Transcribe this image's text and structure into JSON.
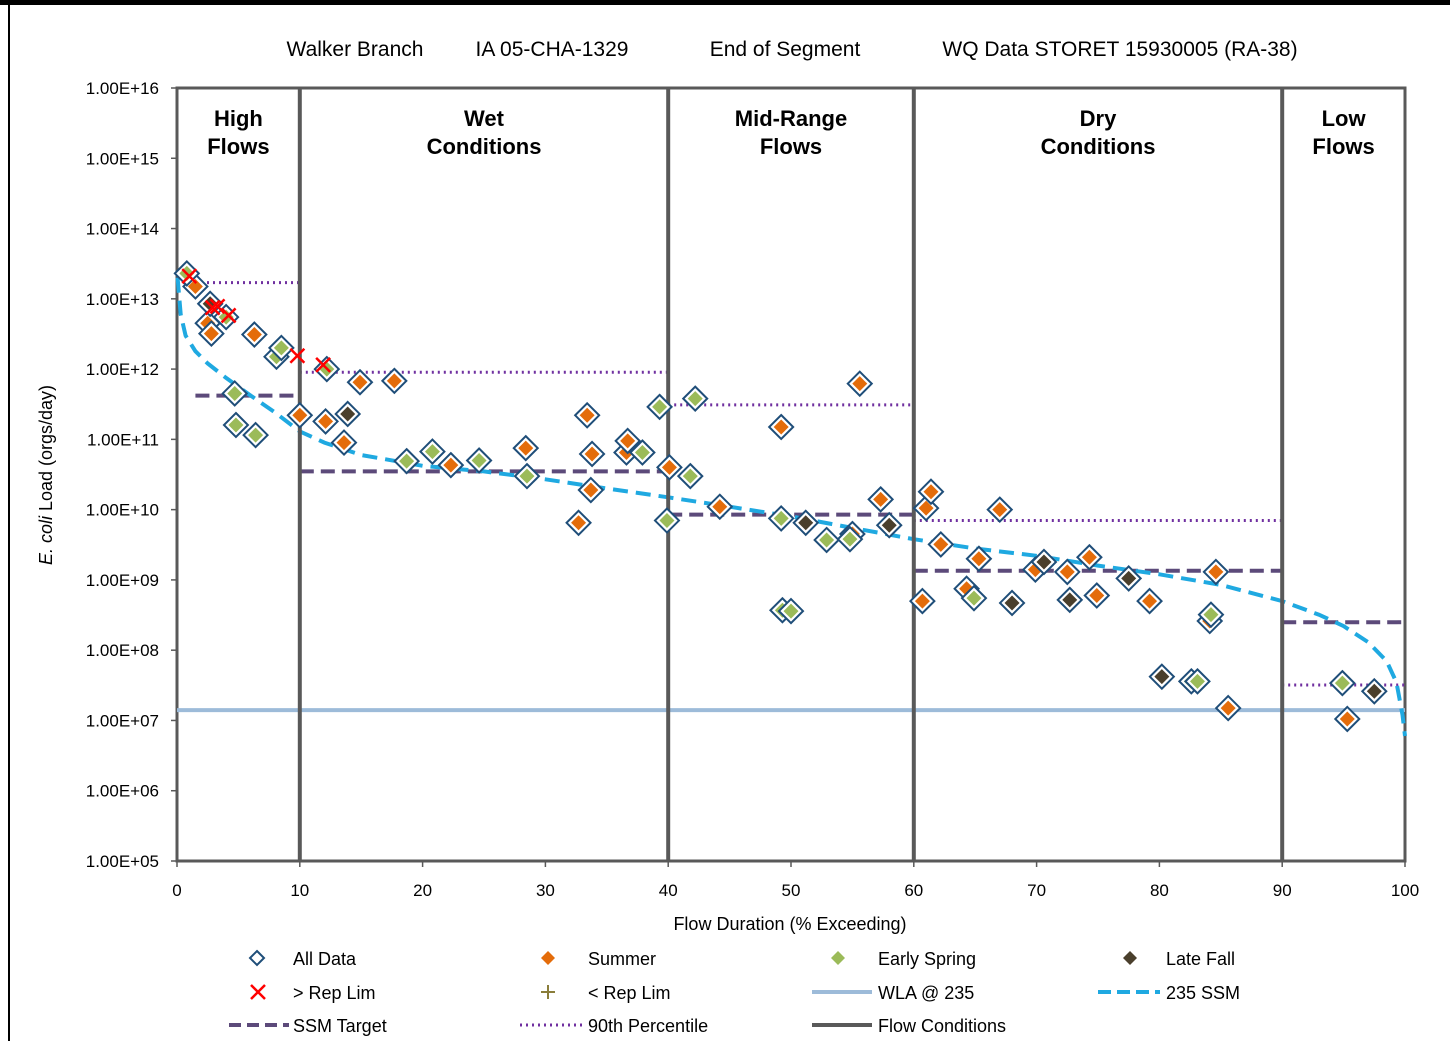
{
  "chart_data": {
    "type": "scatter",
    "title_parts": [
      "Walker Branch",
      "IA 05-CHA-1329",
      "End of Segment",
      "WQ Data STORET 15930005 (RA-38)"
    ],
    "xlabel": "Flow Duration (% Exceeding)",
    "ylabel_italic": "E. coli",
    "ylabel_rest": " Load (orgs/day)",
    "xlim": [
      0,
      100
    ],
    "ylim_log10": [
      5,
      16
    ],
    "y_scale": "log",
    "x_ticks": [
      "0",
      "10",
      "20",
      "30",
      "40",
      "50",
      "60",
      "70",
      "80",
      "90",
      "100"
    ],
    "y_ticks": [
      "1.00E+05",
      "1.00E+06",
      "1.00E+07",
      "1.00E+08",
      "1.00E+09",
      "1.00E+10",
      "1.00E+11",
      "1.00E+12",
      "1.00E+13",
      "1.00E+14",
      "1.00E+15",
      "1.00E+16"
    ],
    "flow_zones": [
      {
        "lines": [
          "High",
          "Flows"
        ],
        "from": 0,
        "to": 10
      },
      {
        "lines": [
          "Wet",
          "Conditions"
        ],
        "from": 10,
        "to": 40
      },
      {
        "lines": [
          "Mid-Range",
          "Flows"
        ],
        "from": 40,
        "to": 60
      },
      {
        "lines": [
          "Dry",
          "Conditions"
        ],
        "from": 60,
        "to": 90
      },
      {
        "lines": [
          "Low",
          "Flows"
        ],
        "from": 90,
        "to": 100
      }
    ],
    "flow_condition_boundaries": [
      10,
      40,
      60,
      90
    ],
    "wla_235": 14000000.0,
    "ssm_target": [
      {
        "x0": 1.5,
        "x1": 10,
        "y": 420000000000.0
      },
      {
        "x0": 10,
        "x1": 40,
        "y": 35000000000.0
      },
      {
        "x0": 40,
        "x1": 60,
        "y": 8500000000.0
      },
      {
        "x0": 60,
        "x1": 90,
        "y": 1350000000.0
      },
      {
        "x0": 90,
        "x1": 100,
        "y": 250000000.0
      }
    ],
    "percentile_90": [
      {
        "x0": 0,
        "x1": 10,
        "y": 17000000000000.0
      },
      {
        "x0": 10,
        "x1": 40,
        "y": 900000000000.0
      },
      {
        "x0": 40,
        "x1": 60,
        "y": 310000000000.0
      },
      {
        "x0": 60,
        "x1": 90,
        "y": 7000000000.0
      },
      {
        "x0": 90,
        "x1": 100,
        "y": 32000000.0
      }
    ],
    "ssm_curve": [
      [
        0.05,
        20000000000000.0
      ],
      [
        0.3,
        6000000000000.0
      ],
      [
        0.7,
        3000000000000.0
      ],
      [
        1.5,
        1800000000000.0
      ],
      [
        2.5,
        1200000000000.0
      ],
      [
        4,
        750000000000.0
      ],
      [
        6,
        420000000000.0
      ],
      [
        8,
        240000000000.0
      ],
      [
        10,
        130000000000.0
      ],
      [
        12,
        90000000000.0
      ],
      [
        15,
        60000000000.0
      ],
      [
        20,
        42000000000.0
      ],
      [
        25,
        35000000000.0
      ],
      [
        30,
        27000000000.0
      ],
      [
        35,
        20000000000.0
      ],
      [
        40,
        15000000000.0
      ],
      [
        45,
        11000000000.0
      ],
      [
        50,
        8000000000.0
      ],
      [
        55,
        5500000000.0
      ],
      [
        60,
        3800000000.0
      ],
      [
        65,
        2800000000.0
      ],
      [
        70,
        2200000000.0
      ],
      [
        75,
        1600000000.0
      ],
      [
        80,
        1200000000.0
      ],
      [
        85,
        850000000.0
      ],
      [
        90,
        500000000.0
      ],
      [
        93,
        320000000.0
      ],
      [
        95,
        220000000.0
      ],
      [
        97,
        130000000.0
      ],
      [
        98.5,
        70000000.0
      ],
      [
        99.3,
        35000000.0
      ],
      [
        99.8,
        12000000.0
      ],
      [
        100,
        6000000.0
      ]
    ],
    "series": [
      {
        "name": "Summer",
        "color": "#e46c0a",
        "points": [
          [
            1.5,
            15000000000000.0
          ],
          [
            2.5,
            4500000000000.0
          ],
          [
            2.8,
            3200000000000.0
          ],
          [
            6.3,
            3100000000000.0
          ],
          [
            10,
            220000000000.0
          ],
          [
            12.1,
            180000000000.0
          ],
          [
            13.6,
            90000000000.0
          ],
          [
            14.9,
            650000000000.0
          ],
          [
            17.7,
            680000000000.0
          ],
          [
            22.3,
            43000000000.0
          ],
          [
            28.4,
            75000000000.0
          ],
          [
            32.7,
            6500000000.0
          ],
          [
            33.4,
            220000000000.0
          ],
          [
            33.8,
            62000000000.0
          ],
          [
            33.7,
            19000000000.0
          ],
          [
            36.6,
            65000000000.0
          ],
          [
            36.7,
            95000000000.0
          ],
          [
            40.1,
            40000000000.0
          ],
          [
            44.2,
            11000000000.0
          ],
          [
            49.2,
            150000000000.0
          ],
          [
            55.6,
            620000000000.0
          ],
          [
            57.3,
            14000000000.0
          ],
          [
            55.0,
            4500000000.0
          ],
          [
            60.7,
            500000000.0
          ],
          [
            61.0,
            10500000000.0
          ],
          [
            61.4,
            18000000000.0
          ],
          [
            62.2,
            3200000000.0
          ],
          [
            64.3,
            750000000.0
          ],
          [
            65.3,
            2000000000.0
          ],
          [
            67.0,
            10000000000.0
          ],
          [
            69.9,
            1400000000.0
          ],
          [
            72.5,
            1300000000.0
          ],
          [
            74.3,
            2100000000.0
          ],
          [
            74.9,
            600000000.0
          ],
          [
            79.2,
            500000000.0
          ],
          [
            84.1,
            260000000.0
          ],
          [
            84.6,
            1300000000.0
          ],
          [
            85.6,
            15000000.0
          ],
          [
            95.3,
            10500000.0
          ]
        ]
      },
      {
        "name": "Early Spring",
        "color": "#9bbb59",
        "points": [
          [
            0.8,
            23000000000000.0
          ],
          [
            4.0,
            5500000000000.0
          ],
          [
            4.7,
            450000000000.0
          ],
          [
            4.8,
            160000000000.0
          ],
          [
            6.4,
            115000000000.0
          ],
          [
            8.1,
            1500000000000.0
          ],
          [
            8.5,
            2000000000000.0
          ],
          [
            12.2,
            1000000000000.0
          ],
          [
            18.7,
            49000000000.0
          ],
          [
            20.8,
            67000000000.0
          ],
          [
            24.6,
            50000000000.0
          ],
          [
            28.5,
            30000000000.0
          ],
          [
            37.9,
            65000000000.0
          ],
          [
            39.3,
            290000000000.0
          ],
          [
            39.9,
            7000000000.0
          ],
          [
            41.8,
            30000000000.0
          ],
          [
            42.2,
            380000000000.0
          ],
          [
            49.2,
            7500000000.0
          ],
          [
            49.3,
            370000000.0
          ],
          [
            50.0,
            360000000.0
          ],
          [
            52.9,
            3700000000.0
          ],
          [
            54.8,
            3800000000.0
          ],
          [
            64.9,
            550000000.0
          ],
          [
            82.6,
            36000000.0
          ],
          [
            83.1,
            36000000.0
          ],
          [
            84.2,
            320000000.0
          ],
          [
            94.9,
            34000000.0
          ]
        ]
      },
      {
        "name": "Late Fall",
        "color": "#4a3f2c",
        "points": [
          [
            2.7,
            8500000000000.0
          ],
          [
            13.9,
            230000000000.0
          ],
          [
            51.2,
            6500000000.0
          ],
          [
            58.0,
            6000000000.0
          ],
          [
            68.0,
            470000000.0
          ],
          [
            70.6,
            1800000000.0
          ],
          [
            72.7,
            520000000.0
          ],
          [
            77.5,
            1050000000.0
          ],
          [
            80.2,
            42000000.0
          ],
          [
            97.5,
            26000000.0
          ]
        ]
      }
    ],
    "over_rep_limit": [
      [
        1.0,
        21000000000000.0
      ],
      [
        2.9,
        7500000000000.0
      ],
      [
        3.3,
        7800000000000.0
      ],
      [
        4.2,
        5800000000000.0
      ],
      [
        9.8,
        1550000000000.0
      ],
      [
        11.9,
        1150000000000.0
      ]
    ],
    "legend": [
      "All Data",
      "Summer",
      "Early Spring",
      "Late Fall",
      "> Rep Lim",
      "< Rep Lim",
      "WLA @ 235",
      "235 SSM",
      "SSM Target",
      "90th Percentile",
      "Flow Conditions"
    ],
    "colors": {
      "all_data_outline": "#1f4e79",
      "rep_lim_x": "#ff0000",
      "under_rep_lim": "#8a7d3a",
      "wla": "#9dbbd9",
      "ssm_curve": "#1fa9e1",
      "ssm_target": "#5c4a7a",
      "percentile_90": "#7030a0",
      "flow_conditions": "#595959"
    }
  }
}
